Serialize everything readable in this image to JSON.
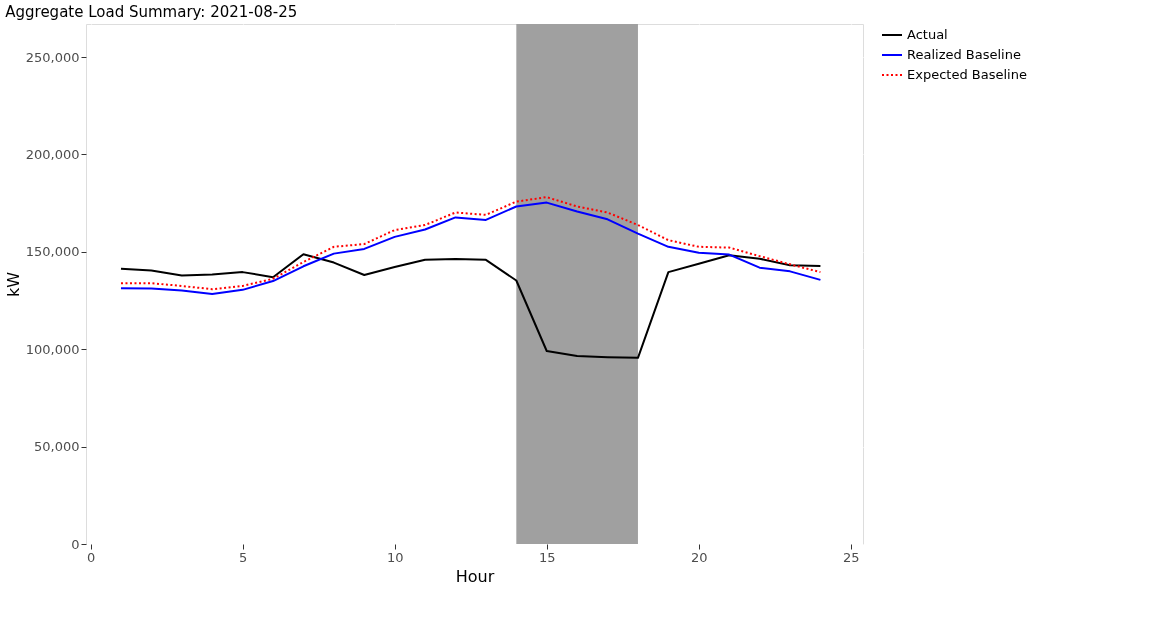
{
  "chart_data": {
    "type": "line",
    "title": "Aggregate Load Summary: 2021-08-25",
    "xlabel": "Hour",
    "ylabel": "kW",
    "x": [
      1,
      2,
      3,
      4,
      5,
      6,
      7,
      8,
      9,
      10,
      11,
      12,
      13,
      14,
      15,
      16,
      17,
      18,
      19,
      20,
      21,
      22,
      23,
      24
    ],
    "series": [
      {
        "name": "Actual",
        "color": "#000000",
        "line_style": "solid",
        "values": [
          141300,
          140400,
          137900,
          138400,
          139600,
          137000,
          148800,
          144500,
          138100,
          142200,
          146000,
          146400,
          145900,
          135300,
          99100,
          96500,
          95900,
          95600,
          139600,
          143900,
          148300,
          146500,
          143100,
          142800
        ]
      },
      {
        "name": "Realized Baseline",
        "color": "#0000ff",
        "line_style": "solid",
        "values": [
          131300,
          131200,
          130200,
          128400,
          130500,
          135000,
          142600,
          149100,
          151500,
          157700,
          161500,
          167700,
          166400,
          173300,
          175300,
          170700,
          166700,
          159400,
          152600,
          149600,
          148600,
          141900,
          140000,
          135600
        ]
      },
      {
        "name": "Expected Baseline",
        "color": "#ff0000",
        "line_style": "dotted",
        "values": [
          133900,
          133900,
          132500,
          130800,
          132500,
          136200,
          144800,
          152600,
          154000,
          161200,
          163800,
          170200,
          169000,
          175800,
          178100,
          173300,
          170200,
          163800,
          156000,
          152600,
          152200,
          147800,
          143600,
          139600
        ]
      }
    ],
    "bands": [
      {
        "axis": "x",
        "from": 14,
        "to": 18,
        "color": "#a0a0a0"
      }
    ],
    "xlim": [
      -0.15,
      25.4
    ],
    "xticks": [
      0,
      5,
      10,
      15,
      20,
      25
    ],
    "ylim": [
      0,
      267000
    ],
    "yticks": [
      0,
      {
        "value": 50000,
        "label": "50,000"
      },
      {
        "value": 100000,
        "label": "100,000"
      },
      {
        "value": 150000,
        "label": "150,000"
      },
      {
        "value": 200000,
        "label": "200,000"
      },
      {
        "value": 250000,
        "label": "250,000"
      }
    ],
    "grid": true,
    "legend": "right"
  }
}
